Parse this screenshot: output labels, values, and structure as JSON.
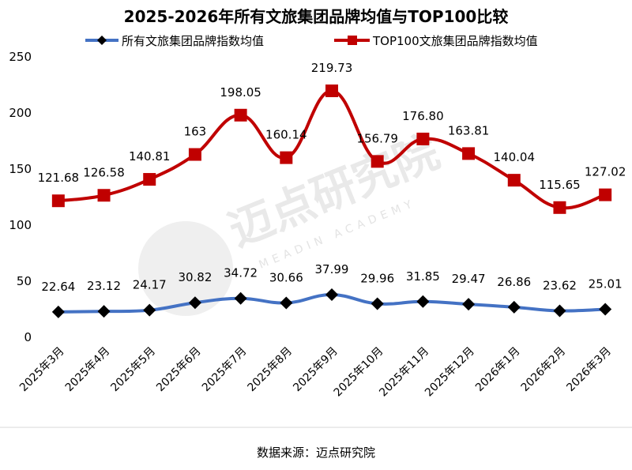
{
  "chart_data": {
    "type": "line",
    "title": "2025-2026年所有文旅集团品牌均值与TOP100比较",
    "categories": [
      "2025年3月",
      "2025年4月",
      "2025年5月",
      "2025年6月",
      "2025年7月",
      "2025年8月",
      "2025年9月",
      "2025年10月",
      "2025年11月",
      "2025年12月",
      "2026年1月",
      "2026年2月",
      "2026年3月"
    ],
    "series": [
      {
        "name": "所有文旅集团品牌指数均值",
        "color": "#4472C4",
        "marker": "diamond",
        "values": [
          22.64,
          23.12,
          24.17,
          30.82,
          34.72,
          30.66,
          37.99,
          29.96,
          31.85,
          29.47,
          26.86,
          23.62,
          25.01
        ],
        "labels": [
          "22.64",
          "23.12",
          "24.17",
          "30.82",
          "34.72",
          "30.66",
          "37.99",
          "29.96",
          "31.85",
          "29.47",
          "26.86",
          "23.62",
          "25.01"
        ]
      },
      {
        "name": "TOP100文旅集团品牌指数均值",
        "color": "#C00000",
        "marker": "square",
        "values": [
          121.68,
          126.58,
          140.81,
          163,
          198.05,
          160.14,
          219.73,
          156.79,
          176.8,
          163.81,
          140.04,
          115.65,
          127.02
        ],
        "labels": [
          "121.68",
          "126.58",
          "140.81",
          "163",
          "198.05",
          "160.14",
          "219.73",
          "156.79",
          "176.80",
          "163.81",
          "140.04",
          "115.65",
          "127.02"
        ]
      }
    ],
    "ylim": [
      0,
      250
    ],
    "yticks": [
      "0",
      "50",
      "100",
      "150",
      "200",
      "250"
    ],
    "xlabel": "",
    "ylabel": "",
    "grid": false,
    "legend": "top"
  },
  "watermark": {
    "main": "迈点研究院",
    "sub": "MEADIN ACADEMY"
  },
  "source": "数据来源：迈点研究院"
}
